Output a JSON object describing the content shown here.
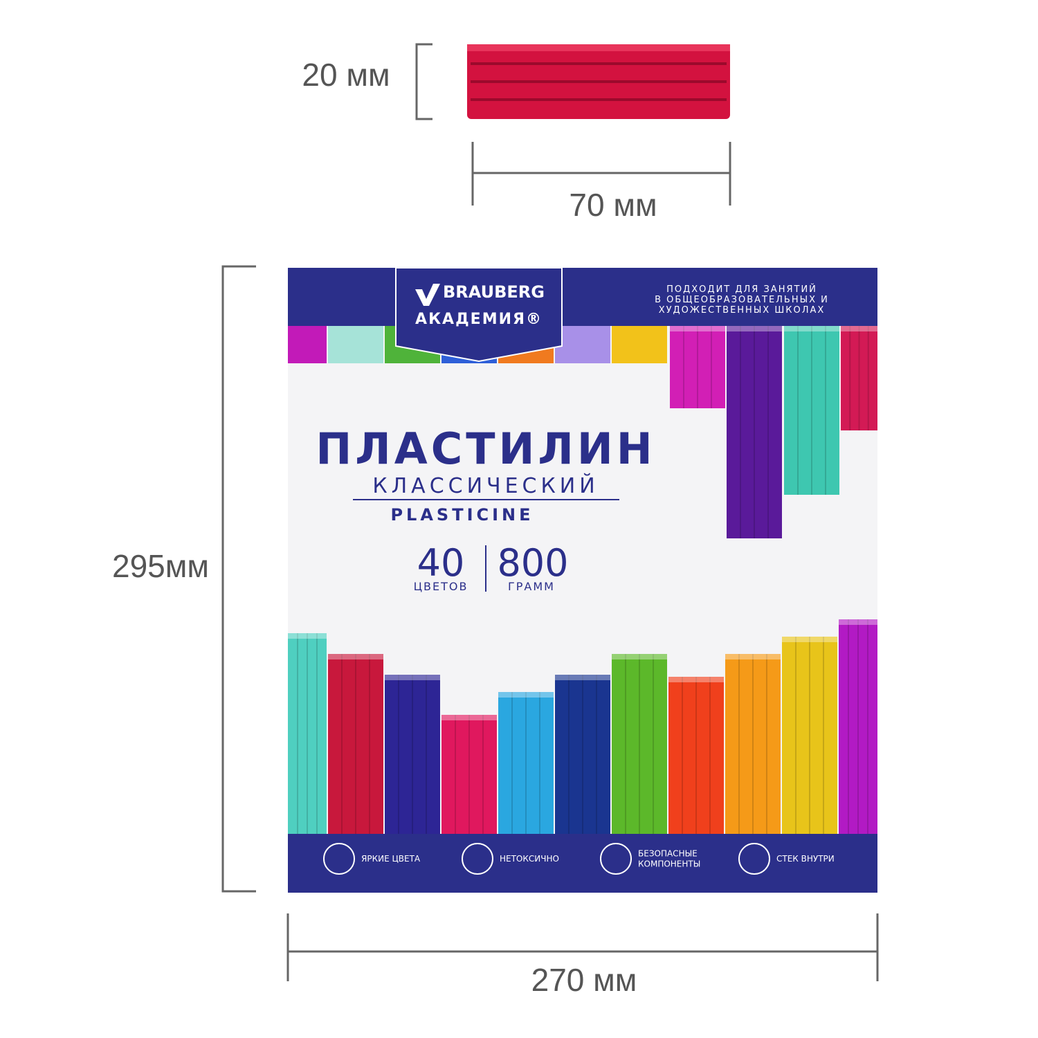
{
  "dimensions": {
    "stick_height": "20 мм",
    "stick_length": "70 мм",
    "box_height": "295мм",
    "box_width": "270 мм"
  },
  "package": {
    "brand": "BRAUBERG",
    "line": "АКАДЕМИЯ®",
    "note": [
      "ПОДХОДИТ ДЛЯ ЗАНЯТИЙ",
      "В ОБЩЕОБРАЗОВАТЕЛЬНЫХ И",
      "ХУДОЖЕСТВЕННЫХ ШКОЛАХ"
    ],
    "title": "ПЛАСТИЛИН",
    "subtitle": "КЛАССИЧЕСКИЙ",
    "english": "PLASTICINE",
    "colors_count": "40",
    "colors_label": "ЦВЕТОВ",
    "weight": "800",
    "weight_label": "ГРАММ",
    "features": [
      [
        "ЯРКИЕ ЦВЕТА"
      ],
      [
        "НЕТОКСИЧНО"
      ],
      [
        "БЕЗОПАСНЫЕ",
        "КОМПОНЕНТЫ"
      ],
      [
        "СТЕК ВНУТРИ"
      ]
    ]
  }
}
